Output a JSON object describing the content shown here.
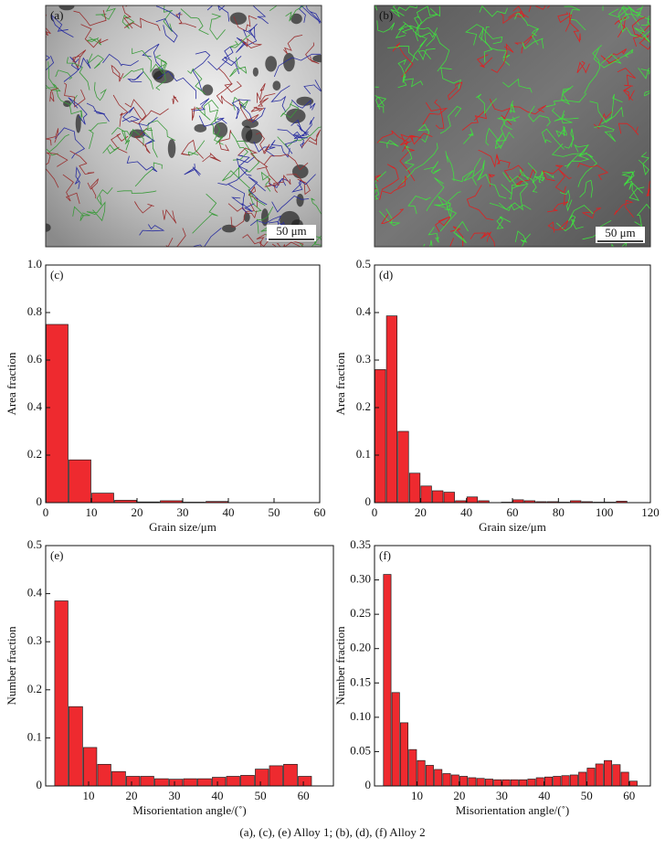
{
  "images": [
    {
      "label": "(a)",
      "scale_bar": "50 μm"
    },
    {
      "label": "(b)",
      "scale_bar": "50 μm"
    }
  ],
  "chart_data": [
    {
      "type": "histogram",
      "title": "(c)",
      "xlabel": "Grain size/μm",
      "ylabel": "Area fraction",
      "color": "#ee2a2f",
      "bins": [
        0,
        5,
        10,
        15,
        20,
        25,
        30,
        35,
        40
      ],
      "values": [
        0.75,
        0.18,
        0.04,
        0.01,
        0.003,
        0.008,
        0.002,
        0.005
      ],
      "xlim": [
        0,
        60
      ],
      "xticks": [
        0,
        10,
        20,
        30,
        40,
        50,
        60
      ],
      "ylim": [
        0,
        1
      ],
      "yticks": [
        0,
        0.2,
        0.4,
        0.6,
        0.8,
        {
          "value": 1,
          "label": "1.0"
        }
      ]
    },
    {
      "type": "histogram",
      "title": "(d)",
      "xlabel": "Grain size/μm",
      "ylabel": "Area fraction",
      "color": "#ee2a2f",
      "bins": [
        0,
        5,
        10,
        15,
        20,
        25,
        30,
        35,
        40,
        45,
        50,
        55,
        60,
        65,
        70,
        75,
        80,
        85,
        90,
        95,
        100,
        105,
        110
      ],
      "values": [
        0.28,
        0.393,
        0.15,
        0.062,
        0.035,
        0.025,
        0.022,
        0.004,
        0.012,
        0.004,
        0,
        0.001,
        0.006,
        0.004,
        0.002,
        0.002,
        0.001,
        0.004,
        0.002,
        0.001,
        0.001,
        0.003
      ],
      "xlim": [
        0,
        120
      ],
      "xticks": [
        0,
        20,
        40,
        60,
        80,
        100,
        120
      ],
      "ylim": [
        0,
        0.5
      ],
      "yticks": [
        0,
        0.1,
        0.2,
        0.3,
        0.4,
        0.5
      ]
    },
    {
      "type": "histogram",
      "title": "(e)",
      "xlabel": "Misorientation angle/(˚)",
      "ylabel": "Number fraction",
      "color": "#ee2a2f",
      "bins": [
        2,
        5.3,
        8.7,
        12,
        15.3,
        18.7,
        22,
        25.3,
        28.7,
        32,
        35.3,
        38.7,
        42,
        45.3,
        48.7,
        52,
        55.3,
        58.7,
        62
      ],
      "values": [
        0.385,
        0.165,
        0.08,
        0.045,
        0.03,
        0.02,
        0.02,
        0.015,
        0.014,
        0.015,
        0.015,
        0.018,
        0.02,
        0.022,
        0.035,
        0.042,
        0.045,
        0.02
      ],
      "xlim": [
        0,
        67
      ],
      "xticks": [
        10,
        20,
        30,
        40,
        50,
        60
      ],
      "ylim": [
        0,
        0.5
      ],
      "yticks": [
        0,
        0.1,
        0.2,
        0.3,
        0.4,
        0.5
      ]
    },
    {
      "type": "histogram",
      "title": "(f)",
      "xlabel": "Misorientation angle/(˚)",
      "ylabel": "Number fraction",
      "color": "#ee2a2f",
      "bins": [
        2,
        4,
        6,
        8,
        10,
        12,
        14,
        16,
        18,
        20,
        22,
        24,
        26,
        28,
        30,
        32,
        34,
        36,
        38,
        40,
        42,
        44,
        46,
        48,
        50,
        52,
        54,
        56,
        58,
        60,
        62
      ],
      "values": [
        0.308,
        0.136,
        0.092,
        0.053,
        0.037,
        0.03,
        0.024,
        0.018,
        0.016,
        0.014,
        0.012,
        0.011,
        0.01,
        0.009,
        0.009,
        0.009,
        0.009,
        0.01,
        0.012,
        0.013,
        0.014,
        0.015,
        0.016,
        0.02,
        0.026,
        0.032,
        0.037,
        0.031,
        0.02,
        0.007
      ],
      "xlim": [
        0,
        65
      ],
      "xticks": [
        10,
        20,
        30,
        40,
        50,
        60
      ],
      "ylim": [
        0,
        0.35
      ],
      "yticks": [
        0,
        0.05,
        {
          "value": 0.1,
          "label": "0.10"
        },
        0.15,
        {
          "value": 0.2,
          "label": "0.20"
        },
        0.25,
        {
          "value": 0.3,
          "label": "0.30"
        },
        0.35
      ]
    }
  ],
  "caption": "(a), (c), (e) Alloy 1; (b), (d), (f) Alloy 2"
}
